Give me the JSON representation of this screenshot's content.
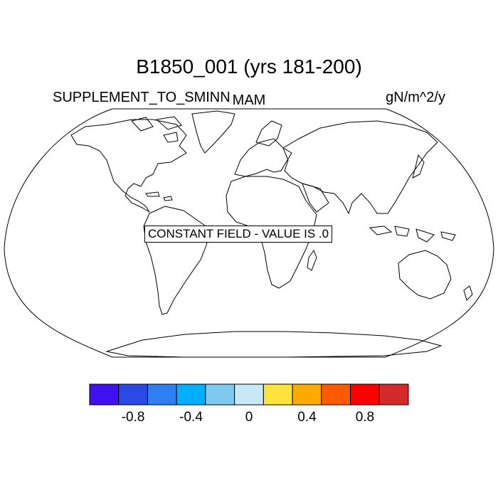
{
  "title": "B1850_001 (yrs 181-200)",
  "left_label": "SUPPLEMENT_TO_SMINN",
  "center_label": "MAM",
  "right_label": "gN/m^2/y",
  "constant_field_text": "CONSTANT FIELD - VALUE IS .0",
  "colorbar": {
    "colors": [
      "#4010f0",
      "#2a4ae6",
      "#2e80f2",
      "#00b0ff",
      "#7fcaef",
      "#c9e8f7",
      "#ffe23a",
      "#ffaa00",
      "#ff5a00",
      "#ff0000",
      "#d42a2a"
    ],
    "tick_labels": [
      "-0.8",
      "-0.4",
      "0",
      "0.4",
      "0.8"
    ]
  },
  "projection": "Robinson",
  "line_color": "#000000"
}
